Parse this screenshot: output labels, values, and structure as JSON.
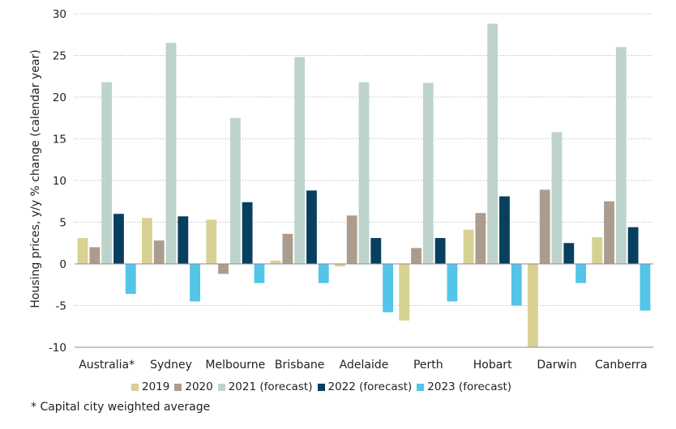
{
  "chart_data": {
    "type": "bar",
    "title": "",
    "xlabel": "",
    "ylabel": "Housing prices, y/y % change (calendar year)",
    "ylim": [
      -10,
      30
    ],
    "yticks": [
      -10,
      -5,
      0,
      5,
      10,
      15,
      20,
      25,
      30
    ],
    "grid": true,
    "legend_position": "bottom",
    "categories": [
      "Australia*",
      "Sydney",
      "Melbourne",
      "Brisbane",
      "Adelaide",
      "Perth",
      "Hobart",
      "Darwin",
      "Canberra"
    ],
    "series": [
      {
        "name": "2019",
        "color": "#d7d193",
        "values": [
          3.1,
          5.5,
          5.3,
          0.4,
          -0.3,
          -6.8,
          4.1,
          -10.0,
          3.2
        ]
      },
      {
        "name": "2020",
        "color": "#ab9c8f",
        "values": [
          2.0,
          2.8,
          -1.2,
          3.6,
          5.8,
          1.9,
          6.1,
          8.9,
          7.5
        ]
      },
      {
        "name": "2021 (forecast)",
        "color": "#bdd3cb",
        "values": [
          21.8,
          26.5,
          17.5,
          24.8,
          21.8,
          21.7,
          28.8,
          15.8,
          26.0
        ]
      },
      {
        "name": "2022 (forecast)",
        "color": "#073f5f",
        "values": [
          6.0,
          5.7,
          7.4,
          8.8,
          3.1,
          3.1,
          8.1,
          2.5,
          4.4
        ]
      },
      {
        "name": "2023 (forecast)",
        "color": "#52c5e8",
        "values": [
          -3.6,
          -4.5,
          -2.3,
          -2.3,
          -5.8,
          -4.5,
          -5.0,
          -2.3,
          -5.6
        ]
      }
    ]
  },
  "footnote": "* Capital city weighted average"
}
